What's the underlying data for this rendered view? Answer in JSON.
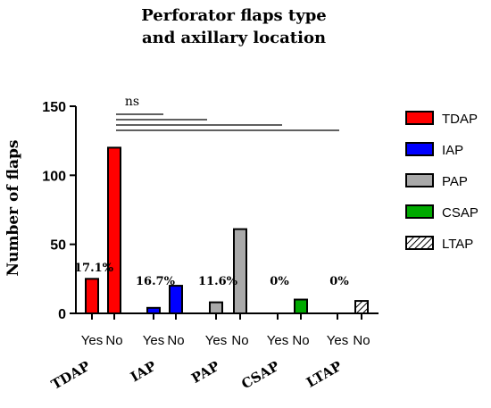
{
  "chart_data": {
    "type": "bar",
    "title_lines": [
      "Perforator flaps type",
      "and axillary location"
    ],
    "ylabel": "Number of flaps",
    "ylim": [
      0,
      150
    ],
    "yticks": [
      0,
      50,
      100,
      150
    ],
    "categories": [
      "Yes",
      "No",
      "Yes",
      "No",
      "Yes",
      "No",
      "Yes",
      "No",
      "Yes",
      "No"
    ],
    "groups": [
      {
        "name": "TDAP",
        "yes": 25,
        "no": 120,
        "percent": "17.1%",
        "color": "#ff0000"
      },
      {
        "name": "IAP",
        "yes": 4,
        "no": 20,
        "percent": "16.7%",
        "color": "#0000ff"
      },
      {
        "name": "PAP",
        "yes": 8,
        "no": 61,
        "percent": "11.6%",
        "color": "#a9a9a9"
      },
      {
        "name": "CSAP",
        "yes": 0,
        "no": 10,
        "percent": "0%",
        "color": "#00aa00"
      },
      {
        "name": "LTAP",
        "yes": 0,
        "no": 9,
        "percent": "0%",
        "color": "hatch"
      }
    ],
    "significance_label": "ns",
    "legend": [
      {
        "label": "TDAP",
        "color": "#ff0000"
      },
      {
        "label": "IAP",
        "color": "#0000ff"
      },
      {
        "label": "PAP",
        "color": "#a9a9a9"
      },
      {
        "label": "CSAP",
        "color": "#00aa00"
      },
      {
        "label": "LTAP",
        "color": "hatch"
      }
    ],
    "legend_position": "right"
  }
}
